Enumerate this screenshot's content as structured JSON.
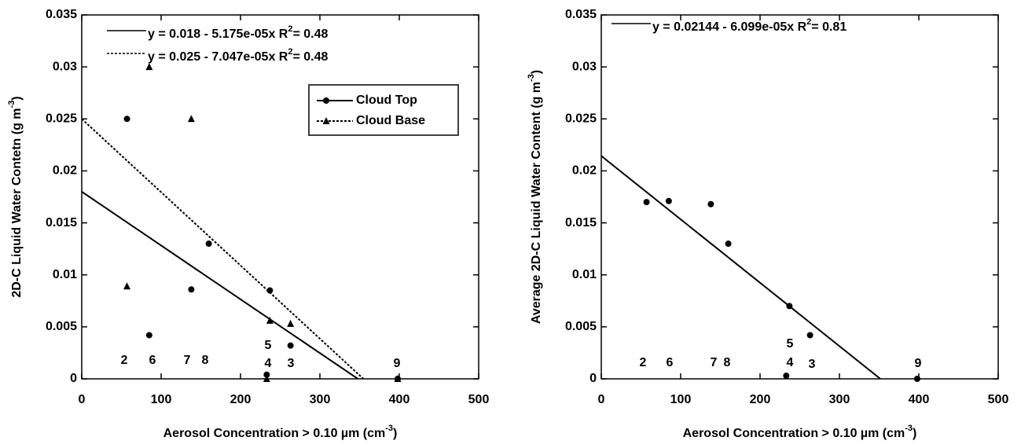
{
  "chart_data": [
    {
      "type": "scatter",
      "xlabel": {
        "text": "Aerosol Concentration > 0.10 µm (cm",
        "sup": "-3",
        "end": ")"
      },
      "ylabel": {
        "text": "2D-C Liquid Water Contetn (g m",
        "sup": "-3",
        "end": ")"
      },
      "xlim": [
        0,
        500
      ],
      "ylim": [
        0,
        0.035
      ],
      "xticks": [
        0,
        100,
        200,
        300,
        400,
        500
      ],
      "yticks": [
        0,
        0.005,
        0.01,
        0.015,
        0.02,
        0.025,
        0.03,
        0.035
      ],
      "legend": "upper right",
      "series": [
        {
          "name": "Cloud Top",
          "marker": "circle",
          "line_style": "solid",
          "color": "#000000",
          "x": [
            57,
            85,
            138,
            160,
            237,
            263,
            233,
            398
          ],
          "values": [
            0.025,
            0.0042,
            0.0086,
            0.013,
            0.0085,
            0.0032,
            0.0004,
            0
          ],
          "fit": {
            "intercept": 0.018,
            "slope": -5.175e-05
          },
          "equation": {
            "text": "y = 0.018 - 5.175e-05x   R",
            "sup": "2",
            "end": "= 0.48"
          }
        },
        {
          "name": "Cloud Base",
          "marker": "triangle",
          "line_style": "dotted",
          "color": "#000000",
          "x": [
            57,
            85,
            138,
            237,
            263,
            233,
            398
          ],
          "values": [
            0.0089,
            0.03,
            0.025,
            0.0056,
            0.0053,
            0,
            0
          ],
          "fit": {
            "intercept": 0.025,
            "slope": -7.047e-05
          },
          "equation": {
            "text": "y = 0.025 - 7.047e-05x   R",
            "sup": "2",
            "end": "= 0.48"
          }
        }
      ],
      "point_labels": [
        "2",
        "6",
        "7",
        "8",
        "5",
        "4",
        "3",
        "9"
      ]
    },
    {
      "type": "scatter",
      "xlabel": {
        "text": "Aerosol Concentration > 0.10 µm (cm",
        "sup": "-3",
        "end": ")"
      },
      "ylabel": {
        "text": "Average 2D-C Liquid Water Content (g m",
        "sup": "-3",
        "end": ")"
      },
      "xlim": [
        0,
        500
      ],
      "ylim": [
        0,
        0.035
      ],
      "xticks": [
        0,
        100,
        200,
        300,
        400,
        500
      ],
      "yticks": [
        0,
        0.005,
        0.01,
        0.015,
        0.02,
        0.025,
        0.03,
        0.035
      ],
      "series": [
        {
          "marker": "circle",
          "line_style": "solid",
          "color": "#000000",
          "x": [
            57,
            85,
            138,
            160,
            237,
            263,
            233,
            398
          ],
          "values": [
            0.017,
            0.0171,
            0.0168,
            0.013,
            0.007,
            0.0042,
            0.0003,
            0
          ],
          "fit": {
            "intercept": 0.02144,
            "slope": -6.099e-05
          },
          "equation": {
            "text": "y = 0.02144 - 6.099e-05x   R",
            "sup": "2",
            "end": "= 0.81"
          }
        }
      ],
      "point_labels": [
        "2",
        "6",
        "7",
        "8",
        "5",
        "4",
        "3",
        "9"
      ]
    }
  ]
}
